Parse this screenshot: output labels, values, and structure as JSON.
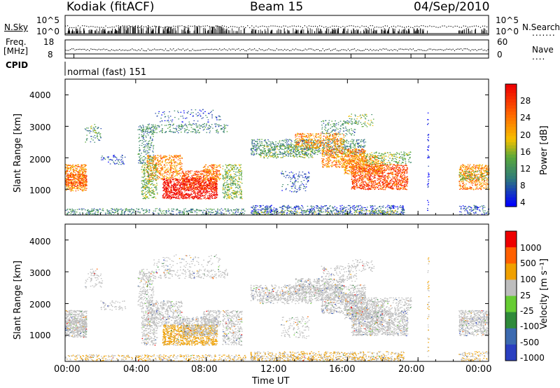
{
  "header": {
    "station": "Kodiak (fitACF)",
    "beam": "Beam 15",
    "date": "04/Sep/2010"
  },
  "top_panels": {
    "nsky_label": "N.Sky",
    "nsky_ticks": [
      "10^5",
      "10^0"
    ],
    "nsearch_label": "N.Search",
    "nsearch_ticks": [
      "10^5",
      "10^0"
    ],
    "freq_label": "Freq.",
    "freq_unit": "[MHz]",
    "freq_ticks": [
      "18",
      "8"
    ],
    "nave_label": "Nave",
    "nave_ticks": [
      "60",
      "0"
    ],
    "cpid_label": "CPID",
    "cpid_value": "normal (fast) 151"
  },
  "chart_data": [
    {
      "type": "heatmap",
      "panel": "power",
      "ylabel": "Slant Range [km]",
      "ylim": [
        180,
        4500
      ],
      "yticks": [
        "4000",
        "3000",
        "2000",
        "1000"
      ],
      "xlim": [
        "00:00",
        "24:00"
      ],
      "colorbar_label": "Power [dB]",
      "colorbar_ticks": [
        "28",
        "24",
        "20",
        "16",
        "12",
        "8",
        "4"
      ],
      "colors": [
        "#0000ff",
        "#2e4fb0",
        "#3d8a6a",
        "#5aa83a",
        "#f0c000",
        "#ff8c00",
        "#ff4000",
        "#ee0000"
      ]
    },
    {
      "type": "heatmap",
      "panel": "velocity",
      "ylabel": "Slant Range [km]",
      "ylim": [
        180,
        4500
      ],
      "yticks": [
        "4000",
        "3000",
        "2000",
        "1000"
      ],
      "xlim": [
        "00:00",
        "24:00"
      ],
      "xticks": [
        "00:00",
        "04:00",
        "08:00",
        "12:00",
        "16:00",
        "20:00",
        "00:00"
      ],
      "xlabel": "Time UT",
      "colorbar_label": "Velocity [m s⁻¹]",
      "colorbar_ticks": [
        "1000",
        "500",
        "100",
        "25",
        "-25",
        "-100",
        "-500",
        "-1000"
      ],
      "colors": [
        "#2a3fc0",
        "#3c6ab0",
        "#2f8a3a",
        "#66cc33",
        "#bdbdbd",
        "#f0a000",
        "#ff6000",
        "#ee0000"
      ]
    }
  ]
}
